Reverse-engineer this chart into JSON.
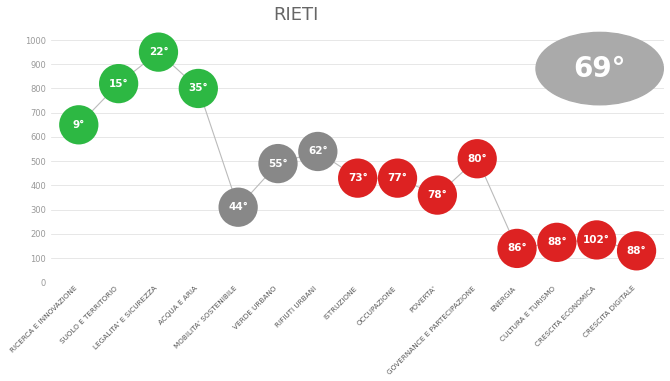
{
  "title": "RIETI",
  "overall_rank": "69°",
  "categories": [
    "RICERCA E INNOVAZIONE",
    "SUOLO E TERRITORIO",
    "LEGALITA' E SICUREZZA",
    "ACQUA E ARIA",
    "MOBILITA' SOSTENIBILE",
    "VERDE URBANO",
    "RIFIUTI URBANI",
    "ISTRUZIONE",
    "OCCUPAZIONE",
    "POVERTA'",
    "GOVERNANCE E PARTECIPAZIONE",
    "ENERGIA",
    "CULTURA E TURISMO",
    "CRESCITA ECONOMICA",
    "CRESCITA DIGITALE"
  ],
  "values": [
    650,
    820,
    950,
    800,
    310,
    490,
    540,
    430,
    430,
    360,
    510,
    140,
    165,
    175,
    130
  ],
  "ranks": [
    "9°",
    "15°",
    "22°",
    "35°",
    "44°",
    "55°",
    "62°",
    "73°",
    "77°",
    "78°",
    "80°",
    "86°",
    "88°",
    "102°",
    "88°"
  ],
  "colors": [
    "#2db843",
    "#2db843",
    "#2db843",
    "#2db843",
    "#888888",
    "#888888",
    "#888888",
    "#dd2222",
    "#dd2222",
    "#dd2222",
    "#dd2222",
    "#dd2222",
    "#dd2222",
    "#dd2222",
    "#dd2222"
  ],
  "dot_size": 800,
  "overall_circle_color": "#aaaaaa",
  "background_color": "#ffffff",
  "ylim": [
    0,
    1050
  ],
  "yticks": [
    0,
    100,
    200,
    300,
    400,
    500,
    600,
    700,
    800,
    900,
    1000
  ],
  "line_color": "#bbbbbb",
  "rank_fontsize": 7.5,
  "title_fontsize": 13,
  "tick_label_fontsize": 5.2
}
